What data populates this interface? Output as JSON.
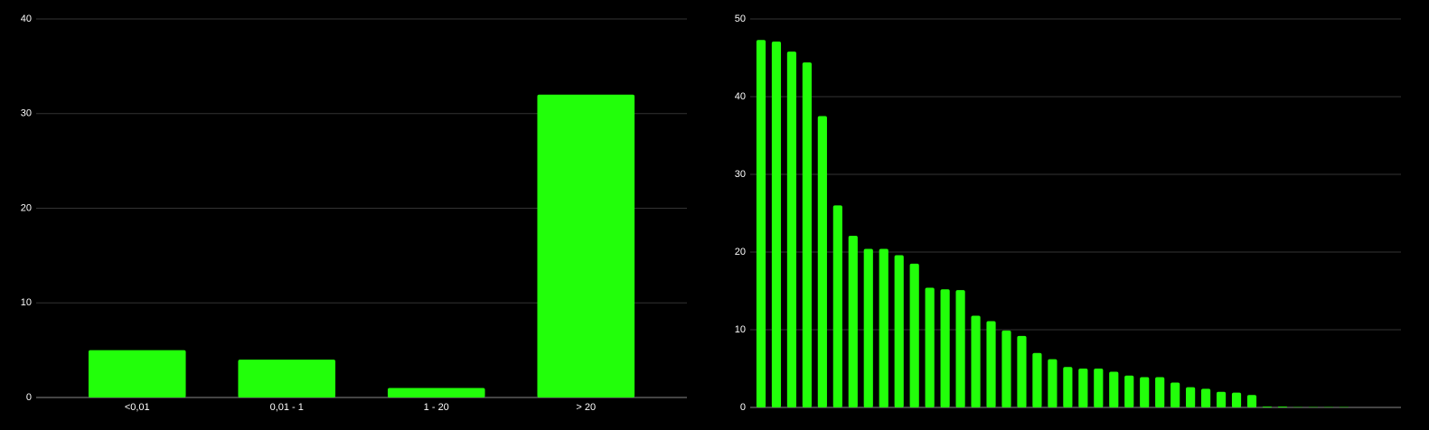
{
  "chart_data": [
    {
      "type": "bar",
      "categories": [
        "<0,01",
        "0,01 - 1",
        "1 - 20",
        "> 20"
      ],
      "values": [
        5,
        4,
        1,
        32
      ],
      "color": "#22ff0a",
      "ylim": [
        0,
        40
      ],
      "yticks": [
        0,
        10,
        20,
        30,
        40
      ],
      "grid": true
    },
    {
      "type": "bar",
      "categories": [
        null,
        null,
        null,
        null,
        null,
        null,
        null,
        null,
        null,
        null,
        null,
        null,
        null,
        null,
        null,
        null,
        null,
        null,
        null,
        null,
        null,
        null,
        null,
        null,
        null,
        null,
        null,
        null,
        null,
        null,
        null,
        null,
        null,
        null,
        null,
        null,
        null,
        null,
        null
      ],
      "values": [
        47.3,
        47.1,
        45.8,
        44.4,
        37.5,
        26,
        22.1,
        20.4,
        20.4,
        19.6,
        18.5,
        15.4,
        15.2,
        15.1,
        11.8,
        11.1,
        9.9,
        9.2,
        7,
        6.2,
        5.2,
        5,
        5,
        4.6,
        4.1,
        3.9,
        3.9,
        3.2,
        2.6,
        2.4,
        2,
        1.9,
        1.6,
        0.1,
        0.1,
        0.05,
        0.05,
        0.05,
        0.05
      ],
      "color": "#22ff0a",
      "ylim": [
        0,
        50
      ],
      "yticks": [
        0,
        10,
        20,
        30,
        40,
        50
      ],
      "grid": true
    }
  ]
}
